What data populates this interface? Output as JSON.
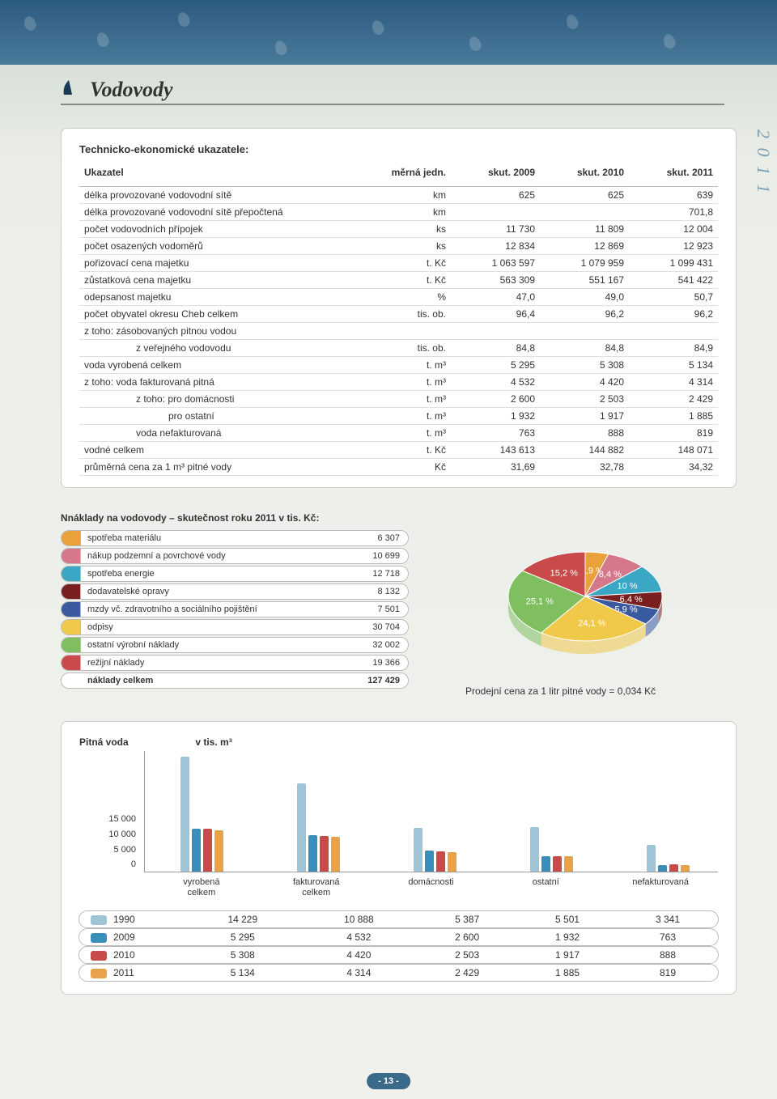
{
  "page": {
    "section_title": "Vodovody",
    "page_number": "- 13 -",
    "side_tab": "2 0 1 1"
  },
  "main_table": {
    "box_title": "Technicko-ekonomické ukazatele:",
    "headers": {
      "c0": "Ukazatel",
      "c1": "měrná jedn.",
      "c2": "skut. 2009",
      "c3": "skut. 2010",
      "c4": "skut. 2011"
    },
    "rows": [
      {
        "label": "délka provozované vodovodní sítě",
        "unit": "km",
        "v09": "625",
        "v10": "625",
        "v11": "639",
        "indent": 0
      },
      {
        "label": "délka provozované vodovodní sítě přepočtená",
        "unit": "km",
        "v09": "",
        "v10": "",
        "v11": "701,8",
        "indent": 0
      },
      {
        "label": "počet vodovodních přípojek",
        "unit": "ks",
        "v09": "11 730",
        "v10": "11 809",
        "v11": "12 004",
        "indent": 0
      },
      {
        "label": "počet osazených vodoměrů",
        "unit": "ks",
        "v09": "12 834",
        "v10": "12 869",
        "v11": "12 923",
        "indent": 0
      },
      {
        "label": "pořizovací cena majetku",
        "unit": "t. Kč",
        "v09": "1 063 597",
        "v10": "1 079 959",
        "v11": "1 099 431",
        "indent": 0
      },
      {
        "label": "zůstatková cena majetku",
        "unit": "t. Kč",
        "v09": "563 309",
        "v10": "551 167",
        "v11": "541 422",
        "indent": 0
      },
      {
        "label": "odepsanost majetku",
        "unit": "%",
        "v09": "47,0",
        "v10": "49,0",
        "v11": "50,7",
        "indent": 0
      },
      {
        "label": "počet obyvatel okresu Cheb celkem",
        "unit": "tis. ob.",
        "v09": "96,4",
        "v10": "96,2",
        "v11": "96,2",
        "indent": 0
      },
      {
        "label": "z toho:   zásobovaných pitnou vodou",
        "unit": "",
        "v09": "",
        "v10": "",
        "v11": "",
        "indent": 0
      },
      {
        "label": "z veřejného vodovodu",
        "unit": "tis. ob.",
        "v09": "84,8",
        "v10": "84,8",
        "v11": "84,9",
        "indent": 2
      },
      {
        "label": "voda vyrobená celkem",
        "unit": "t. m³",
        "v09": "5 295",
        "v10": "5 308",
        "v11": "5 134",
        "indent": 0
      },
      {
        "label": "z toho: voda fakturovaná pitná",
        "unit": "t. m³",
        "v09": "4 532",
        "v10": "4 420",
        "v11": "4 314",
        "indent": 0
      },
      {
        "label": "z toho:  pro domácnosti",
        "unit": "t. m³",
        "v09": "2 600",
        "v10": "2 503",
        "v11": "2 429",
        "indent": 2
      },
      {
        "label": "pro ostatní",
        "unit": "t. m³",
        "v09": "1 932",
        "v10": "1 917",
        "v11": "1 885",
        "indent": 3
      },
      {
        "label": "voda nefakturovaná",
        "unit": "t. m³",
        "v09": "763",
        "v10": "888",
        "v11": "819",
        "indent": 2
      },
      {
        "label": "vodné celkem",
        "unit": "t. Kč",
        "v09": "143 613",
        "v10": "144 882",
        "v11": "148 071",
        "indent": 0
      },
      {
        "label": "průměrná cena za 1 m³ pitné vody",
        "unit": "Kč",
        "v09": "31,69",
        "v10": "32,78",
        "v11": "34,32",
        "indent": 0
      }
    ]
  },
  "costs": {
    "title": "Nnáklady na vodovody – skutečnost roku 2011 v tis. Kč:",
    "rows": [
      {
        "label": "spotřeba materiálu",
        "value": "6 307",
        "color": "#e9a23a",
        "pct": 4.9,
        "pie_label": "4,9 %"
      },
      {
        "label": "nákup podzemní a povrchové vody",
        "value": "10 699",
        "color": "#d6788c",
        "pct": 8.4,
        "pie_label": "8,4 %"
      },
      {
        "label": "spotřeba energie",
        "value": "12 718",
        "color": "#3aa8c4",
        "pct": 10.0,
        "pie_label": "10 %"
      },
      {
        "label": "dodavatelské opravy",
        "value": "8 132",
        "color": "#7a1f1f",
        "pct": 6.4,
        "pie_label": "6,4 %"
      },
      {
        "label": "mzdy vč. zdravotního a sociálního pojištění",
        "value": "7 501",
        "color": "#3a5aa0",
        "pct": 5.9,
        "pie_label": "5,9 %"
      },
      {
        "label": "odpisy",
        "value": "30 704",
        "color": "#f0c94a",
        "pct": 24.1,
        "pie_label": "24,1 %"
      },
      {
        "label": "ostatní výrobní náklady",
        "value": "32 002",
        "color": "#7fbf5f",
        "pct": 25.1,
        "pie_label": "25,1 %"
      },
      {
        "label": "režijní náklady",
        "value": "19 366",
        "color": "#c94a4a",
        "pct": 15.2,
        "pie_label": "15,2 %"
      }
    ],
    "total": {
      "label": "náklady celkem",
      "value": "127 429"
    },
    "sell_note": "Prodejní cena za 1 litr pitné vody = 0,034 Kč"
  },
  "water_chart": {
    "title_a": "Pitná voda",
    "title_b": "v tis. m³",
    "ymax": 15000,
    "yticks": [
      "15 000",
      "10 000",
      "5 000",
      "0"
    ],
    "categories": [
      {
        "key": "vyrobena",
        "line1": "vyrobená",
        "line2": "celkem"
      },
      {
        "key": "fakturovana",
        "line1": "fakturovaná",
        "line2": "celkem"
      },
      {
        "key": "domacnosti",
        "line1": "domácnosti",
        "line2": ""
      },
      {
        "key": "ostatni",
        "line1": "ostatní",
        "line2": ""
      },
      {
        "key": "nefakturovana",
        "line1": "nefakturovaná",
        "line2": ""
      }
    ],
    "series": [
      {
        "year": "1990",
        "color": "#9fc4d6",
        "vals": {
          "vyrobena": 14229,
          "fakturovana": 10888,
          "domacnosti": 5387,
          "ostatni": 5501,
          "nefakturovana": 3341
        }
      },
      {
        "year": "2009",
        "color": "#3a8fba",
        "vals": {
          "vyrobena": 5295,
          "fakturovana": 4532,
          "domacnosti": 2600,
          "ostatni": 1932,
          "nefakturovana": 763
        }
      },
      {
        "year": "2010",
        "color": "#c84a4a",
        "vals": {
          "vyrobena": 5308,
          "fakturovana": 4420,
          "domacnosti": 2503,
          "ostatni": 1917,
          "nefakturovana": 888
        }
      },
      {
        "year": "2011",
        "color": "#e8a24a",
        "vals": {
          "vyrobena": 5134,
          "fakturovana": 4314,
          "domacnosti": 2429,
          "ostatni": 1885,
          "nefakturovana": 819
        }
      }
    ]
  },
  "styling": {
    "font_family": "Arial",
    "title_font": "Georgia italic",
    "accent_border": "#bbb",
    "page_bg": "#f0f1ed",
    "header_gradient": [
      "#2b5a7f",
      "#d8e0d8"
    ]
  }
}
